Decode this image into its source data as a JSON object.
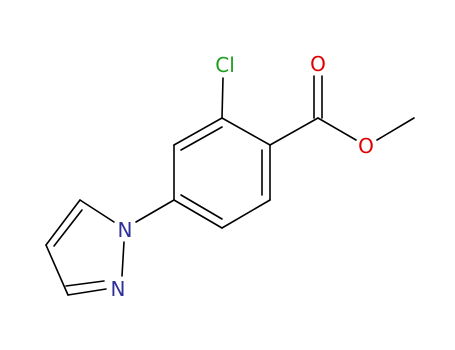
{
  "atoms": [
    {
      "label": "Cl"
    },
    {
      "label": "O"
    },
    {
      "label": "O"
    },
    {
      "label": "N"
    },
    {
      "label": "N"
    }
  ]
}
